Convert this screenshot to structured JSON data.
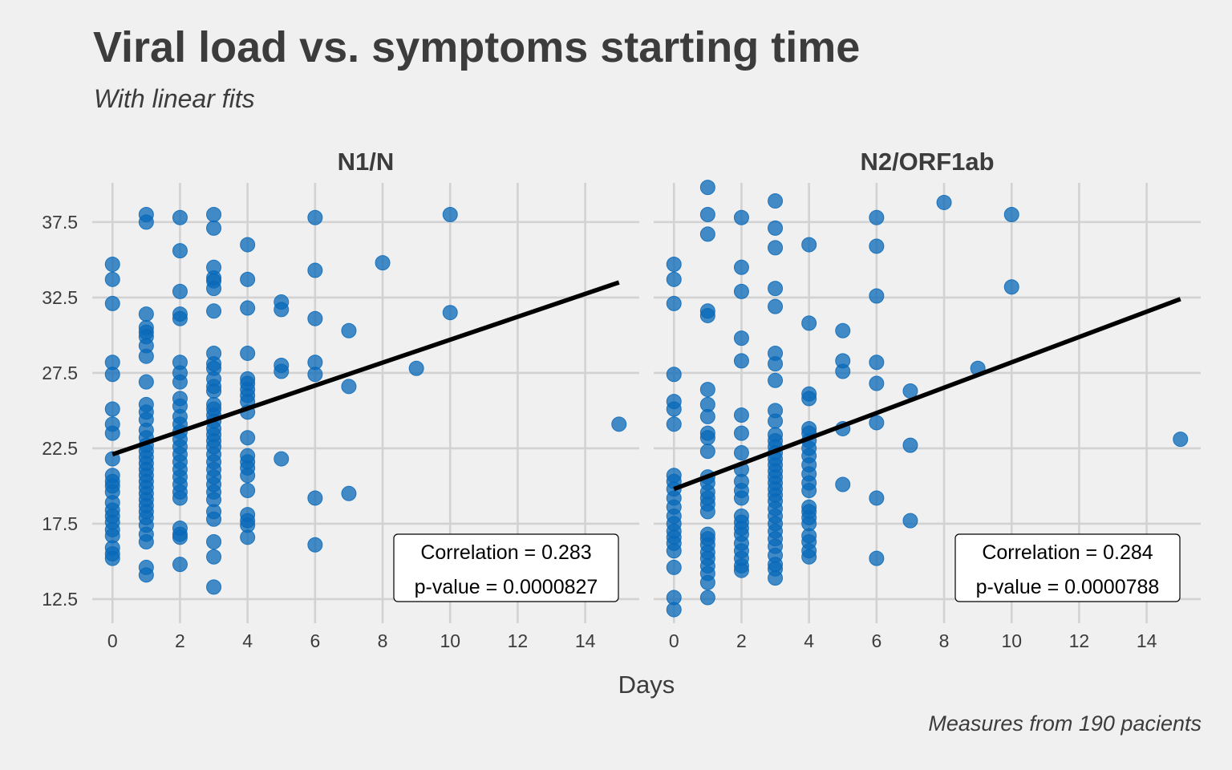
{
  "title": "Viral load vs. symptoms starting time",
  "subtitle": "With linear fits",
  "caption": "Measures from 190 pacients",
  "colors": {
    "background": "#f0f0f0",
    "grid": "#d2d2d2",
    "point": "#0868b8",
    "fit_line": "#000000",
    "text": "#3c3c3c"
  },
  "chart_data": [
    {
      "type": "scatter",
      "panel": "N1/N",
      "xlabel": "Days",
      "ylabel": "",
      "xlim": [
        -0.6,
        15.6
      ],
      "ylim": [
        10.9,
        40.1
      ],
      "x_ticks": [
        0,
        2,
        4,
        6,
        8,
        10,
        12,
        14
      ],
      "y_ticks": [
        12.5,
        17.5,
        22.5,
        27.5,
        32.5,
        37.5
      ],
      "y_tick_labels": [
        "12.5",
        "17.5",
        "22.5",
        "27.5",
        "32.5",
        "37.5"
      ],
      "grid": true,
      "fit": {
        "x": [
          0,
          15
        ],
        "y": [
          22.1,
          33.5
        ]
      },
      "annotation": {
        "line1": "Correlation = 0.283",
        "line2": "p-value = 0.0000827"
      },
      "points": [
        [
          0,
          34.7
        ],
        [
          0,
          33.7
        ],
        [
          0,
          32.1
        ],
        [
          0,
          28.2
        ],
        [
          0,
          27.4
        ],
        [
          0,
          25.1
        ],
        [
          0,
          24.1
        ],
        [
          0,
          23.5
        ],
        [
          0,
          21.8
        ],
        [
          0,
          20.7
        ],
        [
          0,
          20.3
        ],
        [
          0,
          20.0
        ],
        [
          0,
          19.6
        ],
        [
          0,
          18.9
        ],
        [
          0,
          18.4
        ],
        [
          0,
          18.0
        ],
        [
          0,
          17.6
        ],
        [
          0,
          17.1
        ],
        [
          0,
          16.7
        ],
        [
          0,
          15.9
        ],
        [
          0,
          15.5
        ],
        [
          0,
          15.2
        ],
        [
          1,
          38.0
        ],
        [
          1,
          37.5
        ],
        [
          1,
          31.4
        ],
        [
          1,
          30.5
        ],
        [
          1,
          30.2
        ],
        [
          1,
          29.9
        ],
        [
          1,
          29.3
        ],
        [
          1,
          28.6
        ],
        [
          1,
          26.9
        ],
        [
          1,
          25.4
        ],
        [
          1,
          24.9
        ],
        [
          1,
          24.4
        ],
        [
          1,
          23.7
        ],
        [
          1,
          23.2
        ],
        [
          1,
          22.7
        ],
        [
          1,
          22.3
        ],
        [
          1,
          21.9
        ],
        [
          1,
          21.5
        ],
        [
          1,
          21.1
        ],
        [
          1,
          20.7
        ],
        [
          1,
          20.3
        ],
        [
          1,
          19.9
        ],
        [
          1,
          19.5
        ],
        [
          1,
          19.1
        ],
        [
          1,
          18.7
        ],
        [
          1,
          18.3
        ],
        [
          1,
          17.9
        ],
        [
          1,
          17.4
        ],
        [
          1,
          16.8
        ],
        [
          1,
          16.3
        ],
        [
          1,
          14.6
        ],
        [
          1,
          14.1
        ],
        [
          2,
          37.8
        ],
        [
          2,
          35.6
        ],
        [
          2,
          32.9
        ],
        [
          2,
          31.4
        ],
        [
          2,
          31.1
        ],
        [
          2,
          28.2
        ],
        [
          2,
          27.5
        ],
        [
          2,
          26.9
        ],
        [
          2,
          25.8
        ],
        [
          2,
          25.3
        ],
        [
          2,
          24.6
        ],
        [
          2,
          24.1
        ],
        [
          2,
          23.6
        ],
        [
          2,
          23.1
        ],
        [
          2,
          22.6
        ],
        [
          2,
          22.1
        ],
        [
          2,
          21.6
        ],
        [
          2,
          21.1
        ],
        [
          2,
          20.6
        ],
        [
          2,
          20.1
        ],
        [
          2,
          19.6
        ],
        [
          2,
          19.2
        ],
        [
          2,
          17.2
        ],
        [
          2,
          16.8
        ],
        [
          2,
          16.6
        ],
        [
          2,
          14.8
        ],
        [
          3,
          38.0
        ],
        [
          3,
          37.1
        ],
        [
          3,
          34.5
        ],
        [
          3,
          33.8
        ],
        [
          3,
          33.6
        ],
        [
          3,
          33.1
        ],
        [
          3,
          31.6
        ],
        [
          3,
          28.8
        ],
        [
          3,
          28.1
        ],
        [
          3,
          27.8
        ],
        [
          3,
          27.1
        ],
        [
          3,
          26.6
        ],
        [
          3,
          26.3
        ],
        [
          3,
          25.4
        ],
        [
          3,
          25.1
        ],
        [
          3,
          24.7
        ],
        [
          3,
          24.3
        ],
        [
          3,
          23.8
        ],
        [
          3,
          23.4
        ],
        [
          3,
          23.0
        ],
        [
          3,
          22.6
        ],
        [
          3,
          22.1
        ],
        [
          3,
          21.6
        ],
        [
          3,
          21.1
        ],
        [
          3,
          20.6
        ],
        [
          3,
          20.1
        ],
        [
          3,
          19.6
        ],
        [
          3,
          19.1
        ],
        [
          3,
          18.3
        ],
        [
          3,
          17.8
        ],
        [
          3,
          16.3
        ],
        [
          3,
          15.3
        ],
        [
          3,
          13.3
        ],
        [
          4,
          36.0
        ],
        [
          4,
          33.7
        ],
        [
          4,
          31.8
        ],
        [
          4,
          28.8
        ],
        [
          4,
          27.1
        ],
        [
          4,
          26.8
        ],
        [
          4,
          26.4
        ],
        [
          4,
          26.0
        ],
        [
          4,
          25.6
        ],
        [
          4,
          24.9
        ],
        [
          4,
          23.2
        ],
        [
          4,
          22.0
        ],
        [
          4,
          21.6
        ],
        [
          4,
          21.2
        ],
        [
          4,
          20.7
        ],
        [
          4,
          19.7
        ],
        [
          4,
          18.1
        ],
        [
          4,
          17.7
        ],
        [
          4,
          17.4
        ],
        [
          4,
          16.6
        ],
        [
          5,
          32.2
        ],
        [
          5,
          31.7
        ],
        [
          5,
          28.0
        ],
        [
          5,
          27.6
        ],
        [
          5,
          21.8
        ],
        [
          6,
          37.8
        ],
        [
          6,
          34.3
        ],
        [
          6,
          31.1
        ],
        [
          6,
          28.2
        ],
        [
          6,
          27.4
        ],
        [
          6,
          19.2
        ],
        [
          6,
          16.1
        ],
        [
          7,
          30.3
        ],
        [
          7,
          26.6
        ],
        [
          7,
          19.5
        ],
        [
          8,
          34.8
        ],
        [
          9,
          27.8
        ],
        [
          10,
          38.0
        ],
        [
          10,
          31.5
        ],
        [
          15,
          24.1
        ]
      ]
    },
    {
      "type": "scatter",
      "panel": "N2/ORF1ab",
      "xlabel": "Days",
      "ylabel": "",
      "xlim": [
        -0.6,
        15.6
      ],
      "ylim": [
        10.9,
        40.1
      ],
      "x_ticks": [
        0,
        2,
        4,
        6,
        8,
        10,
        12,
        14
      ],
      "y_ticks": [
        12.5,
        17.5,
        22.5,
        27.5,
        32.5,
        37.5
      ],
      "y_tick_labels": [
        "12.5",
        "17.5",
        "22.5",
        "27.5",
        "32.5",
        "37.5"
      ],
      "grid": true,
      "fit": {
        "x": [
          0,
          15
        ],
        "y": [
          19.8,
          32.4
        ]
      },
      "annotation": {
        "line1": "Correlation = 0.284",
        "line2": "p-value = 0.0000788"
      },
      "points": [
        [
          0,
          34.7
        ],
        [
          0,
          33.7
        ],
        [
          0,
          32.1
        ],
        [
          0,
          27.4
        ],
        [
          0,
          25.6
        ],
        [
          0,
          25.1
        ],
        [
          0,
          24.1
        ],
        [
          0,
          20.7
        ],
        [
          0,
          20.3
        ],
        [
          0,
          19.8
        ],
        [
          0,
          19.2
        ],
        [
          0,
          18.6
        ],
        [
          0,
          18.0
        ],
        [
          0,
          17.5
        ],
        [
          0,
          17.0
        ],
        [
          0,
          16.6
        ],
        [
          0,
          16.2
        ],
        [
          0,
          15.7
        ],
        [
          0,
          14.6
        ],
        [
          0,
          12.6
        ],
        [
          0,
          11.8
        ],
        [
          1,
          39.8
        ],
        [
          1,
          38.0
        ],
        [
          1,
          36.7
        ],
        [
          1,
          31.6
        ],
        [
          1,
          31.3
        ],
        [
          1,
          26.4
        ],
        [
          1,
          25.4
        ],
        [
          1,
          24.6
        ],
        [
          1,
          23.5
        ],
        [
          1,
          23.2
        ],
        [
          1,
          22.3
        ],
        [
          1,
          20.6
        ],
        [
          1,
          20.2
        ],
        [
          1,
          19.6
        ],
        [
          1,
          19.2
        ],
        [
          1,
          18.8
        ],
        [
          1,
          18.3
        ],
        [
          1,
          16.8
        ],
        [
          1,
          16.5
        ],
        [
          1,
          16.1
        ],
        [
          1,
          15.6
        ],
        [
          1,
          15.2
        ],
        [
          1,
          14.7
        ],
        [
          1,
          14.2
        ],
        [
          1,
          13.6
        ],
        [
          1,
          12.6
        ],
        [
          2,
          37.8
        ],
        [
          2,
          34.5
        ],
        [
          2,
          32.9
        ],
        [
          2,
          29.8
        ],
        [
          2,
          28.3
        ],
        [
          2,
          24.7
        ],
        [
          2,
          23.5
        ],
        [
          2,
          22.2
        ],
        [
          2,
          21.1
        ],
        [
          2,
          20.3
        ],
        [
          2,
          19.7
        ],
        [
          2,
          19.2
        ],
        [
          2,
          18.0
        ],
        [
          2,
          17.6
        ],
        [
          2,
          17.2
        ],
        [
          2,
          16.8
        ],
        [
          2,
          16.2
        ],
        [
          2,
          15.7
        ],
        [
          2,
          15.2
        ],
        [
          2,
          14.7
        ],
        [
          2,
          14.4
        ],
        [
          3,
          38.9
        ],
        [
          3,
          37.1
        ],
        [
          3,
          35.8
        ],
        [
          3,
          33.1
        ],
        [
          3,
          31.9
        ],
        [
          3,
          28.8
        ],
        [
          3,
          28.1
        ],
        [
          3,
          27.0
        ],
        [
          3,
          25.0
        ],
        [
          3,
          24.3
        ],
        [
          3,
          23.4
        ],
        [
          3,
          23.0
        ],
        [
          3,
          22.6
        ],
        [
          3,
          22.2
        ],
        [
          3,
          21.8
        ],
        [
          3,
          21.4
        ],
        [
          3,
          21.0
        ],
        [
          3,
          20.6
        ],
        [
          3,
          20.2
        ],
        [
          3,
          19.8
        ],
        [
          3,
          19.4
        ],
        [
          3,
          19.0
        ],
        [
          3,
          18.5
        ],
        [
          3,
          18.0
        ],
        [
          3,
          17.5
        ],
        [
          3,
          17.0
        ],
        [
          3,
          16.5
        ],
        [
          3,
          16.0
        ],
        [
          3,
          15.4
        ],
        [
          3,
          14.8
        ],
        [
          3,
          14.5
        ],
        [
          3,
          13.9
        ],
        [
          4,
          36.0
        ],
        [
          4,
          30.8
        ],
        [
          4,
          26.1
        ],
        [
          4,
          25.8
        ],
        [
          4,
          23.8
        ],
        [
          4,
          23.5
        ],
        [
          4,
          23.0
        ],
        [
          4,
          22.5
        ],
        [
          4,
          22.0
        ],
        [
          4,
          21.4
        ],
        [
          4,
          20.8
        ],
        [
          4,
          20.2
        ],
        [
          4,
          19.7
        ],
        [
          4,
          18.6
        ],
        [
          4,
          18.3
        ],
        [
          4,
          17.9
        ],
        [
          4,
          17.5
        ],
        [
          4,
          16.7
        ],
        [
          4,
          16.3
        ],
        [
          4,
          15.7
        ],
        [
          4,
          15.3
        ],
        [
          5,
          30.3
        ],
        [
          5,
          28.3
        ],
        [
          5,
          27.6
        ],
        [
          5,
          23.8
        ],
        [
          5,
          20.1
        ],
        [
          6,
          37.8
        ],
        [
          6,
          35.9
        ],
        [
          6,
          32.6
        ],
        [
          6,
          28.2
        ],
        [
          6,
          26.8
        ],
        [
          6,
          24.2
        ],
        [
          6,
          19.2
        ],
        [
          6,
          15.2
        ],
        [
          7,
          26.3
        ],
        [
          7,
          22.7
        ],
        [
          7,
          17.7
        ],
        [
          8,
          38.8
        ],
        [
          9,
          27.8
        ],
        [
          10,
          38.0
        ],
        [
          10,
          33.2
        ],
        [
          15,
          23.1
        ]
      ]
    }
  ]
}
